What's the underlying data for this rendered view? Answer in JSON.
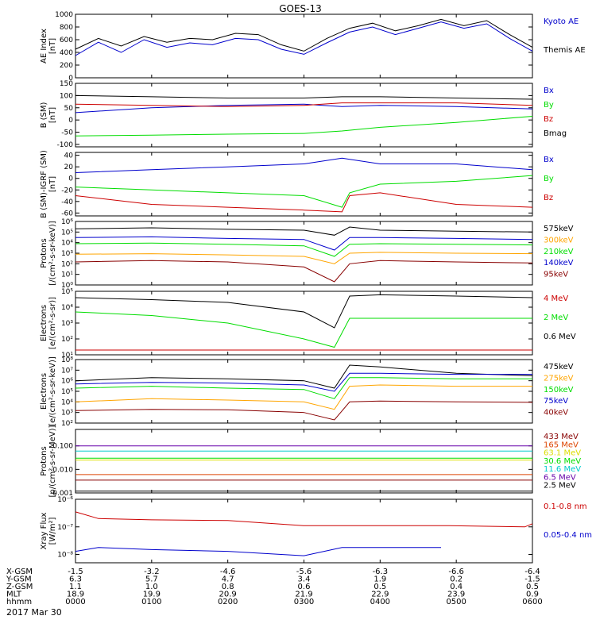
{
  "figure": {
    "title": "GOES-13",
    "date": "2017 Mar 30"
  },
  "colors": {
    "black": "#000000",
    "red": "#cc0000",
    "blue": "#0000cc",
    "green": "#00dd00",
    "orange": "#ffa500",
    "cyan": "#00cccc",
    "yellow": "#dddd00",
    "purple": "#6600aa",
    "brown": "#880000",
    "orangered": "#dd4400"
  },
  "time_axis": {
    "tick_hours": [
      0,
      1,
      2,
      3,
      4,
      5,
      6
    ],
    "rows": [
      {
        "name": "X-GSM",
        "values": [
          "-1.5",
          "-3.2",
          "-4.6",
          "-5.6",
          "-6.3",
          "-6.6",
          "-6.4"
        ]
      },
      {
        "name": "Y-GSM",
        "values": [
          "6.3",
          "5.7",
          "4.7",
          "3.4",
          "1.9",
          "0.2",
          "-1.5"
        ]
      },
      {
        "name": "Z-GSM",
        "values": [
          "1.1",
          "1.0",
          "0.8",
          "0.6",
          "0.5",
          "0.4",
          "0.5"
        ]
      },
      {
        "name": "MLT",
        "values": [
          "18.9",
          "19.9",
          "20.9",
          "21.9",
          "22.9",
          "23.9",
          "0.9"
        ]
      },
      {
        "name": "hhmm",
        "values": [
          "0000",
          "0100",
          "0200",
          "0300",
          "0400",
          "0500",
          "0600"
        ]
      }
    ]
  },
  "chart_data": [
    {
      "type": "line",
      "ylabel": "AE Index\n[nT]",
      "ylim": [
        0,
        1000
      ],
      "yticks": [
        0,
        200,
        400,
        600,
        800,
        1000
      ],
      "series": [
        {
          "name": "Kyoto AE",
          "color": "#0000cc",
          "x": [
            0,
            0.3,
            0.6,
            0.9,
            1.2,
            1.5,
            1.8,
            2.1,
            2.4,
            2.7,
            3.0,
            3.3,
            3.6,
            3.9,
            4.2,
            4.5,
            4.8,
            5.1,
            5.4,
            5.7,
            6.0
          ],
          "y": [
            350,
            560,
            400,
            600,
            480,
            550,
            520,
            620,
            600,
            450,
            370,
            550,
            720,
            800,
            680,
            780,
            880,
            780,
            850,
            620,
            420
          ]
        },
        {
          "name": "Themis AE",
          "color": "#000000",
          "x": [
            0,
            0.3,
            0.6,
            0.9,
            1.2,
            1.5,
            1.8,
            2.1,
            2.4,
            2.7,
            3.0,
            3.3,
            3.6,
            3.9,
            4.2,
            4.5,
            4.8,
            5.1,
            5.4,
            5.7,
            6.0
          ],
          "y": [
            450,
            620,
            500,
            650,
            560,
            620,
            600,
            700,
            680,
            520,
            420,
            620,
            780,
            860,
            740,
            820,
            920,
            820,
            900,
            680,
            480
          ]
        }
      ]
    },
    {
      "type": "line",
      "ylabel": "B (SM)\n[nT]",
      "ylim": [
        -110,
        150
      ],
      "yticks": [
        -100,
        -50,
        0,
        50,
        100,
        150
      ],
      "series": [
        {
          "name": "Bx",
          "color": "#0000cc",
          "x": [
            0,
            1,
            2,
            3,
            3.5,
            4,
            5,
            6
          ],
          "y": [
            30,
            50,
            60,
            65,
            55,
            60,
            55,
            45
          ]
        },
        {
          "name": "By",
          "color": "#00dd00",
          "x": [
            0,
            1,
            2,
            3,
            3.5,
            4,
            5,
            6
          ],
          "y": [
            -65,
            -62,
            -58,
            -55,
            -45,
            -30,
            -10,
            15
          ]
        },
        {
          "name": "Bz",
          "color": "#cc0000",
          "x": [
            0,
            1,
            2,
            3,
            3.5,
            4,
            5,
            6
          ],
          "y": [
            65,
            60,
            55,
            60,
            70,
            70,
            70,
            60
          ]
        },
        {
          "name": "Bmag",
          "color": "#000000",
          "x": [
            0,
            1,
            2,
            3,
            3.5,
            4,
            5,
            6
          ],
          "y": [
            100,
            95,
            90,
            90,
            95,
            95,
            90,
            85
          ]
        }
      ]
    },
    {
      "type": "line",
      "ylabel": "B (SM)-IGRF (SM)\n[nT]",
      "ylim": [
        -65,
        45
      ],
      "yticks": [
        -60,
        -40,
        -20,
        0,
        20,
        40
      ],
      "series": [
        {
          "name": "Bx",
          "color": "#0000cc",
          "x": [
            0,
            1,
            2,
            3,
            3.5,
            4,
            5,
            6
          ],
          "y": [
            10,
            15,
            20,
            25,
            35,
            25,
            25,
            15
          ]
        },
        {
          "name": "By",
          "color": "#00dd00",
          "x": [
            0,
            1,
            2,
            3,
            3.5,
            3.6,
            4,
            5,
            6
          ],
          "y": [
            -15,
            -20,
            -25,
            -30,
            -50,
            -25,
            -10,
            -5,
            5
          ]
        },
        {
          "name": "Bz",
          "color": "#cc0000",
          "x": [
            0,
            1,
            2,
            3,
            3.5,
            3.6,
            4,
            5,
            6
          ],
          "y": [
            -30,
            -45,
            -50,
            -55,
            -58,
            -30,
            -25,
            -45,
            -50
          ]
        }
      ]
    },
    {
      "type": "line",
      "yscale": "log",
      "ylabel": "Protons\n[/(cm²-s-sr-keV)]",
      "ylim": [
        1,
        1000000
      ],
      "yticks": [
        1,
        10,
        100,
        1000,
        10000,
        100000,
        1000000
      ],
      "ytick_labels": [
        "10⁰",
        "10¹",
        "10²",
        "10³",
        "10⁴",
        "10⁵",
        "10⁶"
      ],
      "series": [
        {
          "name": "575keV",
          "color": "#000000",
          "x": [
            0,
            1,
            2,
            3,
            3.4,
            3.6,
            4,
            5,
            6
          ],
          "y": [
            200000,
            250000,
            180000,
            150000,
            50000,
            300000,
            150000,
            120000,
            100000
          ]
        },
        {
          "name": "300keV",
          "color": "#ffa500",
          "x": [
            0,
            1,
            2,
            3,
            3.4,
            3.6,
            4,
            5,
            6
          ],
          "y": [
            800,
            900,
            700,
            500,
            100,
            1000,
            1200,
            1000,
            900
          ]
        },
        {
          "name": "210keV",
          "color": "#00dd00",
          "x": [
            0,
            1,
            2,
            3,
            3.4,
            3.6,
            4,
            5,
            6
          ],
          "y": [
            8000,
            9000,
            7000,
            5000,
            500,
            7000,
            8000,
            7000,
            6000
          ]
        },
        {
          "name": "140keV",
          "color": "#0000cc",
          "x": [
            0,
            1,
            2,
            3,
            3.4,
            3.6,
            4,
            5,
            6
          ],
          "y": [
            30000,
            35000,
            25000,
            20000,
            2000,
            30000,
            30000,
            25000,
            20000
          ]
        },
        {
          "name": "95keV",
          "color": "#880000",
          "x": [
            0,
            1,
            2,
            3,
            3.4,
            3.6,
            4,
            5,
            6
          ],
          "y": [
            150,
            200,
            150,
            50,
            2,
            100,
            200,
            150,
            120
          ]
        }
      ]
    },
    {
      "type": "line",
      "yscale": "log",
      "ylabel": "Electrons\n[e/(cm²-s-sr)]",
      "ylim": [
        10,
        100000
      ],
      "yticks": [
        10,
        100,
        1000,
        10000,
        100000
      ],
      "ytick_labels": [
        "10¹",
        "10²",
        "10³",
        "10⁴",
        "10⁵"
      ],
      "series": [
        {
          "name": "4 MeV",
          "color": "#cc0000",
          "x": [
            0,
            1,
            2,
            3,
            4,
            5,
            6
          ],
          "y": [
            20,
            20,
            20,
            20,
            20,
            20,
            20
          ]
        },
        {
          "name": "2 MeV",
          "color": "#00dd00",
          "x": [
            0,
            1,
            2,
            3,
            3.4,
            3.6,
            4,
            5,
            6
          ],
          "y": [
            5000,
            3000,
            1000,
            100,
            30,
            2000,
            2000,
            2000,
            2000
          ]
        },
        {
          "name": "0.6 MeV",
          "color": "#000000",
          "x": [
            0,
            1,
            2,
            3,
            3.4,
            3.6,
            4,
            5,
            6
          ],
          "y": [
            40000,
            30000,
            20000,
            5000,
            500,
            50000,
            60000,
            50000,
            40000
          ]
        }
      ]
    },
    {
      "type": "line",
      "yscale": "log",
      "ylabel": "Electrons\n[e/(cm²-s-sr-keV)]",
      "ylim": [
        100,
        100000000
      ],
      "yticks": [
        100,
        1000,
        10000,
        100000,
        1000000,
        10000000,
        100000000
      ],
      "ytick_labels": [
        "10²",
        "10³",
        "10⁴",
        "10⁵",
        "10⁶",
        "10⁷",
        "10⁸"
      ],
      "series": [
        {
          "name": "475keV",
          "color": "#000000",
          "x": [
            0,
            1,
            2,
            3,
            3.4,
            3.6,
            4,
            5,
            6
          ],
          "y": [
            1000000,
            2000000,
            1500000,
            1000000,
            200000,
            30000000,
            20000000,
            5000000,
            3000000
          ]
        },
        {
          "name": "275keV",
          "color": "#ffa500",
          "x": [
            0,
            1,
            2,
            3,
            3.4,
            3.6,
            4,
            5,
            6
          ],
          "y": [
            10000,
            20000,
            15000,
            10000,
            2000,
            300000,
            400000,
            300000,
            300000
          ]
        },
        {
          "name": "150keV",
          "color": "#00dd00",
          "x": [
            0,
            1,
            2,
            3,
            3.4,
            3.6,
            4,
            5,
            6
          ],
          "y": [
            200000,
            300000,
            200000,
            150000,
            20000,
            2000000,
            2000000,
            1500000,
            1500000
          ]
        },
        {
          "name": "75keV",
          "color": "#0000cc",
          "x": [
            0,
            1,
            2,
            3,
            3.4,
            3.6,
            4,
            5,
            6
          ],
          "y": [
            500000,
            700000,
            600000,
            400000,
            100000,
            5000000,
            5000000,
            4000000,
            4000000
          ]
        },
        {
          "name": "40keV",
          "color": "#880000",
          "x": [
            0,
            1,
            2,
            3,
            3.4,
            3.6,
            4,
            5,
            6
          ],
          "y": [
            1500,
            2000,
            1800,
            1000,
            200,
            10000,
            12000,
            10000,
            9000
          ]
        }
      ]
    },
    {
      "type": "line",
      "yscale": "log",
      "ylabel": "Protons\n[p/(cm²-s-sr-MeV)]",
      "ylim": [
        0.001,
        0.5
      ],
      "yticks": [
        0.001,
        0.01,
        0.1
      ],
      "ytick_labels": [
        "0.001",
        "0.010",
        "0.100"
      ],
      "series": [
        {
          "name": "433 MeV",
          "color": "#880000",
          "x": [
            0,
            6
          ],
          "y": [
            0.0035,
            0.0035
          ]
        },
        {
          "name": "165 MeV",
          "color": "#dd4400",
          "x": [
            0,
            6
          ],
          "y": [
            0.006,
            0.006
          ]
        },
        {
          "name": "63.1 MeV",
          "color": "#dddd00",
          "x": [
            0,
            6
          ],
          "y": [
            0.025,
            0.025
          ]
        },
        {
          "name": "30.6 MeV",
          "color": "#00dd00",
          "x": [
            0,
            6
          ],
          "y": [
            0.03,
            0.03
          ]
        },
        {
          "name": "11.6 MeV",
          "color": "#00cccc",
          "x": [
            0,
            6
          ],
          "y": [
            0.06,
            0.06
          ]
        },
        {
          "name": "6.5 MeV",
          "color": "#6600aa",
          "x": [
            0,
            6
          ],
          "y": [
            0.1,
            0.1
          ]
        },
        {
          "name": "2.5 MeV",
          "color": "#000000",
          "x": [
            0,
            6
          ],
          "y": [
            0.0012,
            0.0012
          ]
        }
      ]
    },
    {
      "type": "line",
      "yscale": "log",
      "ylabel": "Xray Flux\n[W/m²]",
      "ylim": [
        5e-09,
        1e-06
      ],
      "yticks": [
        1e-08,
        1e-07,
        1e-06
      ],
      "ytick_labels": [
        "10⁻⁸",
        "10⁻⁷",
        "10⁻⁶"
      ],
      "series": [
        {
          "name": "0.1-0.8 nm",
          "color": "#cc0000",
          "x": [
            0,
            0.3,
            1,
            2,
            3,
            4,
            4.9,
            5.9,
            6.0
          ],
          "y": [
            3.5e-07,
            2e-07,
            1.8e-07,
            1.7e-07,
            1.1e-07,
            1.1e-07,
            1.1e-07,
            1e-07,
            1.3e-07
          ]
        },
        {
          "name": "0.05-0.4 nm",
          "color": "#0000cc",
          "x": [
            0,
            0.3,
            1,
            2,
            3,
            3.5,
            4,
            4.8
          ],
          "y": [
            1.3e-08,
            1.8e-08,
            1.5e-08,
            1.3e-08,
            9e-09,
            1.8e-08,
            1.8e-08,
            1.8e-08
          ]
        }
      ]
    }
  ]
}
